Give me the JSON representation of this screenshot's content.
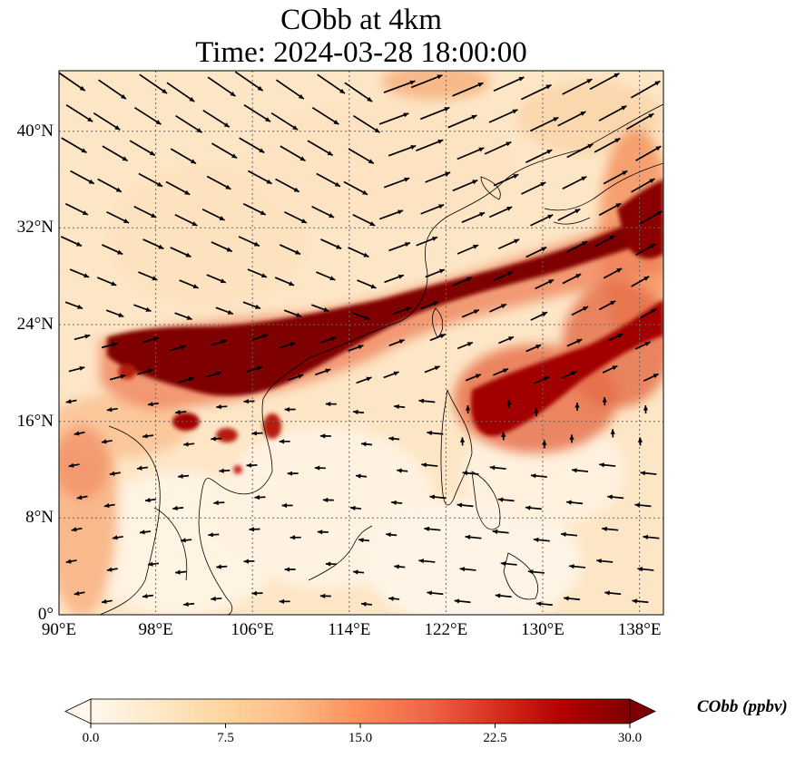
{
  "title": {
    "line1": "CObb at 4km",
    "line2": "Time: 2024-03-28 18:00:00"
  },
  "map": {
    "lon_range": [
      90,
      140
    ],
    "lat_range": [
      0,
      45
    ],
    "gridlines": true,
    "coastlines": true,
    "wind_vectors": true,
    "x_ticks": [
      "90°E",
      "98°E",
      "106°E",
      "114°E",
      "122°E",
      "130°E",
      "138°E"
    ],
    "y_ticks": [
      "40°N",
      "32°N",
      "24°N",
      "16°N",
      "8°N",
      "0°"
    ]
  },
  "colorbar": {
    "label": "CObb (ppbv)",
    "ticks": [
      "0.0",
      "7.5",
      "15.0",
      "22.5",
      "30.0"
    ],
    "range": [
      0,
      30
    ],
    "colormap": [
      "#fff7ec",
      "#fee8c8",
      "#fdd49e",
      "#fdbb84",
      "#fc8d59",
      "#ef6548",
      "#d7301f",
      "#b30000",
      "#7f0000"
    ],
    "extend": "both"
  }
}
